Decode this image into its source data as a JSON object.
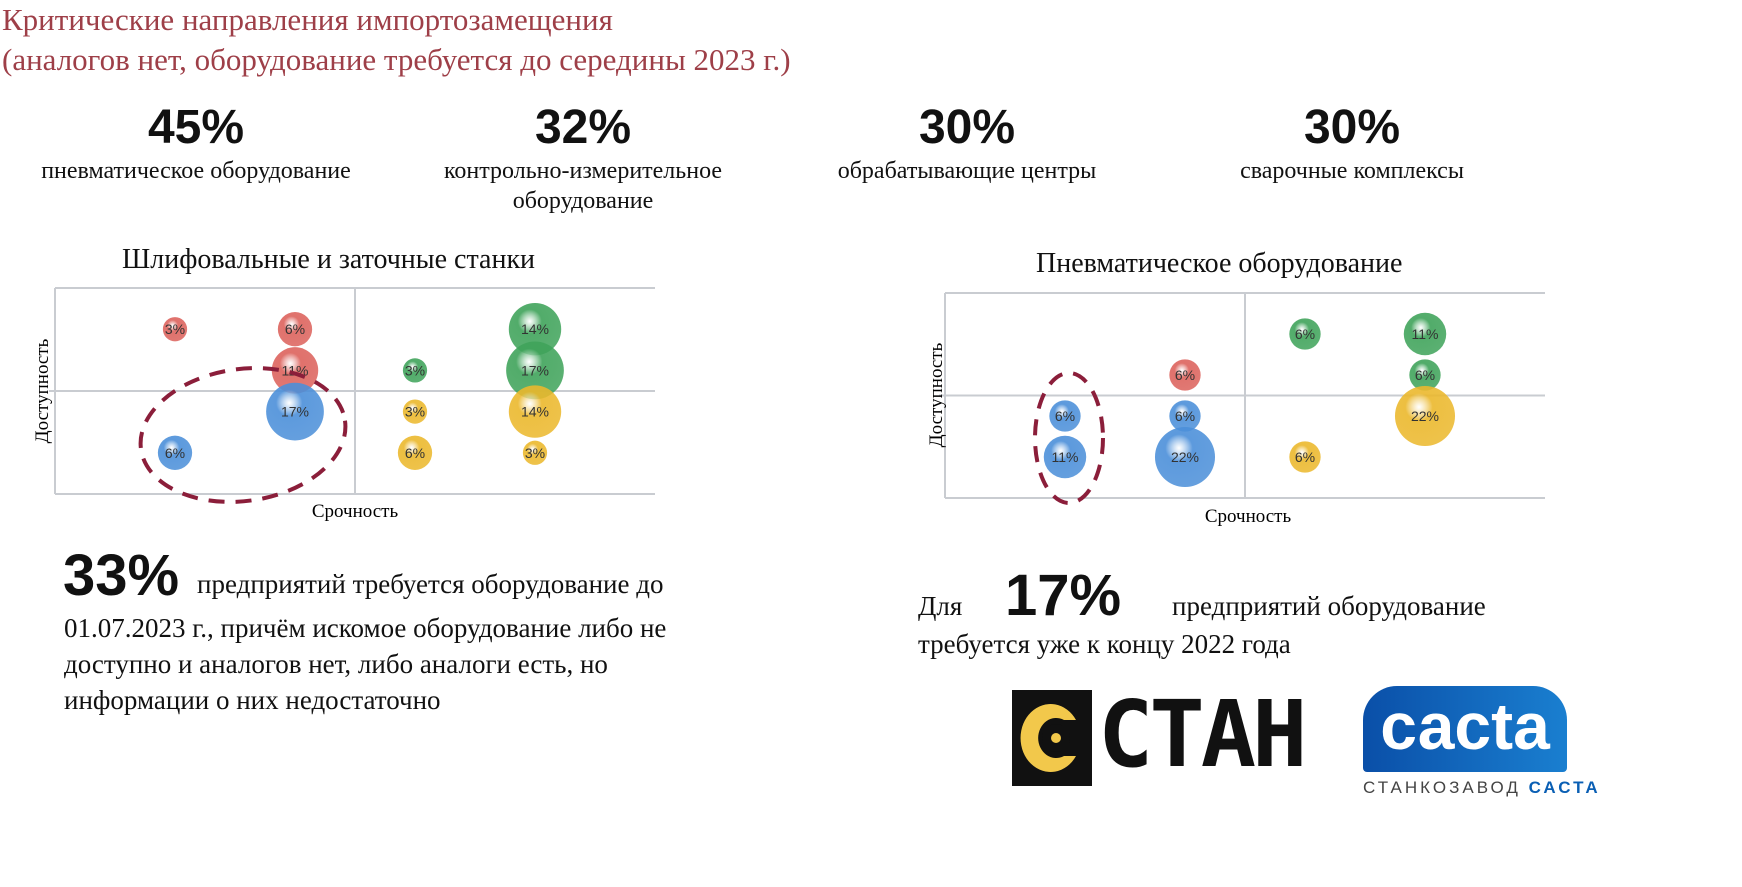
{
  "header": {
    "title_line1": "Критические направления импортозамещения",
    "title_line2": "(аналогов нет, оборудование требуется до середины 2023 г.)"
  },
  "stats": [
    {
      "value": "45%",
      "label": "пневматическое оборудование"
    },
    {
      "value": "32%",
      "label": "контрольно-измерительное оборудование"
    },
    {
      "value": "30%",
      "label": "обрабатывающие центры"
    },
    {
      "value": "30%",
      "label": "сварочные комплексы"
    }
  ],
  "chart_data": [
    {
      "type": "scatter",
      "subtype": "bubble",
      "title": "Шлифовальные и заточные станки",
      "xlabel": "Срочность",
      "ylabel": "Доступность",
      "xlim": [
        0,
        10
      ],
      "ylim": [
        0,
        10
      ],
      "quadrant_lines": {
        "x": 5,
        "y": 5
      },
      "grid": false,
      "points": [
        {
          "x": 2,
          "y": 8,
          "value": 3,
          "label": "3%",
          "color": "red"
        },
        {
          "x": 4,
          "y": 8,
          "value": 6,
          "label": "6%",
          "color": "red"
        },
        {
          "x": 4,
          "y": 6,
          "value": 11,
          "label": "11%",
          "color": "red"
        },
        {
          "x": 4,
          "y": 4,
          "value": 17,
          "label": "17%",
          "color": "blue"
        },
        {
          "x": 2,
          "y": 2,
          "value": 6,
          "label": "6%",
          "color": "blue"
        },
        {
          "x": 6,
          "y": 6,
          "value": 3,
          "label": "3%",
          "color": "green"
        },
        {
          "x": 8,
          "y": 8,
          "value": 14,
          "label": "14%",
          "color": "green"
        },
        {
          "x": 8,
          "y": 6,
          "value": 17,
          "label": "17%",
          "color": "green"
        },
        {
          "x": 6,
          "y": 4,
          "value": 3,
          "label": "3%",
          "color": "yellow"
        },
        {
          "x": 8,
          "y": 4,
          "value": 14,
          "label": "14%",
          "color": "yellow"
        },
        {
          "x": 6,
          "y": 2,
          "value": 6,
          "label": "6%",
          "color": "yellow"
        },
        {
          "x": 8,
          "y": 2,
          "value": 3,
          "label": "3%",
          "color": "yellow"
        }
      ],
      "highlight": {
        "shape": "dashed-ellipse",
        "around": [
          "6%",
          "17%"
        ]
      }
    },
    {
      "type": "scatter",
      "subtype": "bubble",
      "title": "Пневматическое оборудование",
      "xlabel": "Срочность",
      "ylabel": "Доступность",
      "xlim": [
        0,
        10
      ],
      "ylim": [
        0,
        10
      ],
      "quadrant_lines": {
        "x": 5,
        "y": 5
      },
      "grid": false,
      "points": [
        {
          "x": 2,
          "y": 4,
          "value": 6,
          "label": "6%",
          "color": "blue"
        },
        {
          "x": 2,
          "y": 2,
          "value": 11,
          "label": "11%",
          "color": "blue"
        },
        {
          "x": 4,
          "y": 6,
          "value": 6,
          "label": "6%",
          "color": "red"
        },
        {
          "x": 4,
          "y": 4,
          "value": 6,
          "label": "6%",
          "color": "blue"
        },
        {
          "x": 4,
          "y": 2,
          "value": 22,
          "label": "22%",
          "color": "blue"
        },
        {
          "x": 6,
          "y": 8,
          "value": 6,
          "label": "6%",
          "color": "green"
        },
        {
          "x": 6,
          "y": 2,
          "value": 6,
          "label": "6%",
          "color": "yellow"
        },
        {
          "x": 8,
          "y": 8,
          "value": 11,
          "label": "11%",
          "color": "green"
        },
        {
          "x": 8,
          "y": 6,
          "value": 6,
          "label": "6%",
          "color": "green"
        },
        {
          "x": 8,
          "y": 4,
          "value": 22,
          "label": "22%",
          "color": "yellow"
        }
      ],
      "highlight": {
        "shape": "dashed-ellipse",
        "around": [
          "6%",
          "11%"
        ]
      }
    }
  ],
  "colors": {
    "red": "#dc625c",
    "blue": "#4b8fd9",
    "green": "#3fa35a",
    "yellow": "#ebb82c",
    "title": "#9e3f48",
    "highlight": "#8b1e3a",
    "sasta_blue": "#0a5fb4"
  },
  "left_note": {
    "value": "33%",
    "line1": "предприятий требуется оборудование до",
    "line2": "01.07.2023 г., причём искомое оборудование либо не",
    "line3": "доступно и аналогов нет, либо аналоги есть, но",
    "line4": "информации о них недостаточно"
  },
  "right_note": {
    "prefix": "Для",
    "value": "17%",
    "suffix": "предприятий оборудование",
    "line2": "требуется уже к концу 2022 года"
  },
  "logos": {
    "stan": "СТАН",
    "sasta": "сасta",
    "sasta_caption_a": "СТАНКОЗАВОД",
    "sasta_caption_b": "САСТА"
  }
}
